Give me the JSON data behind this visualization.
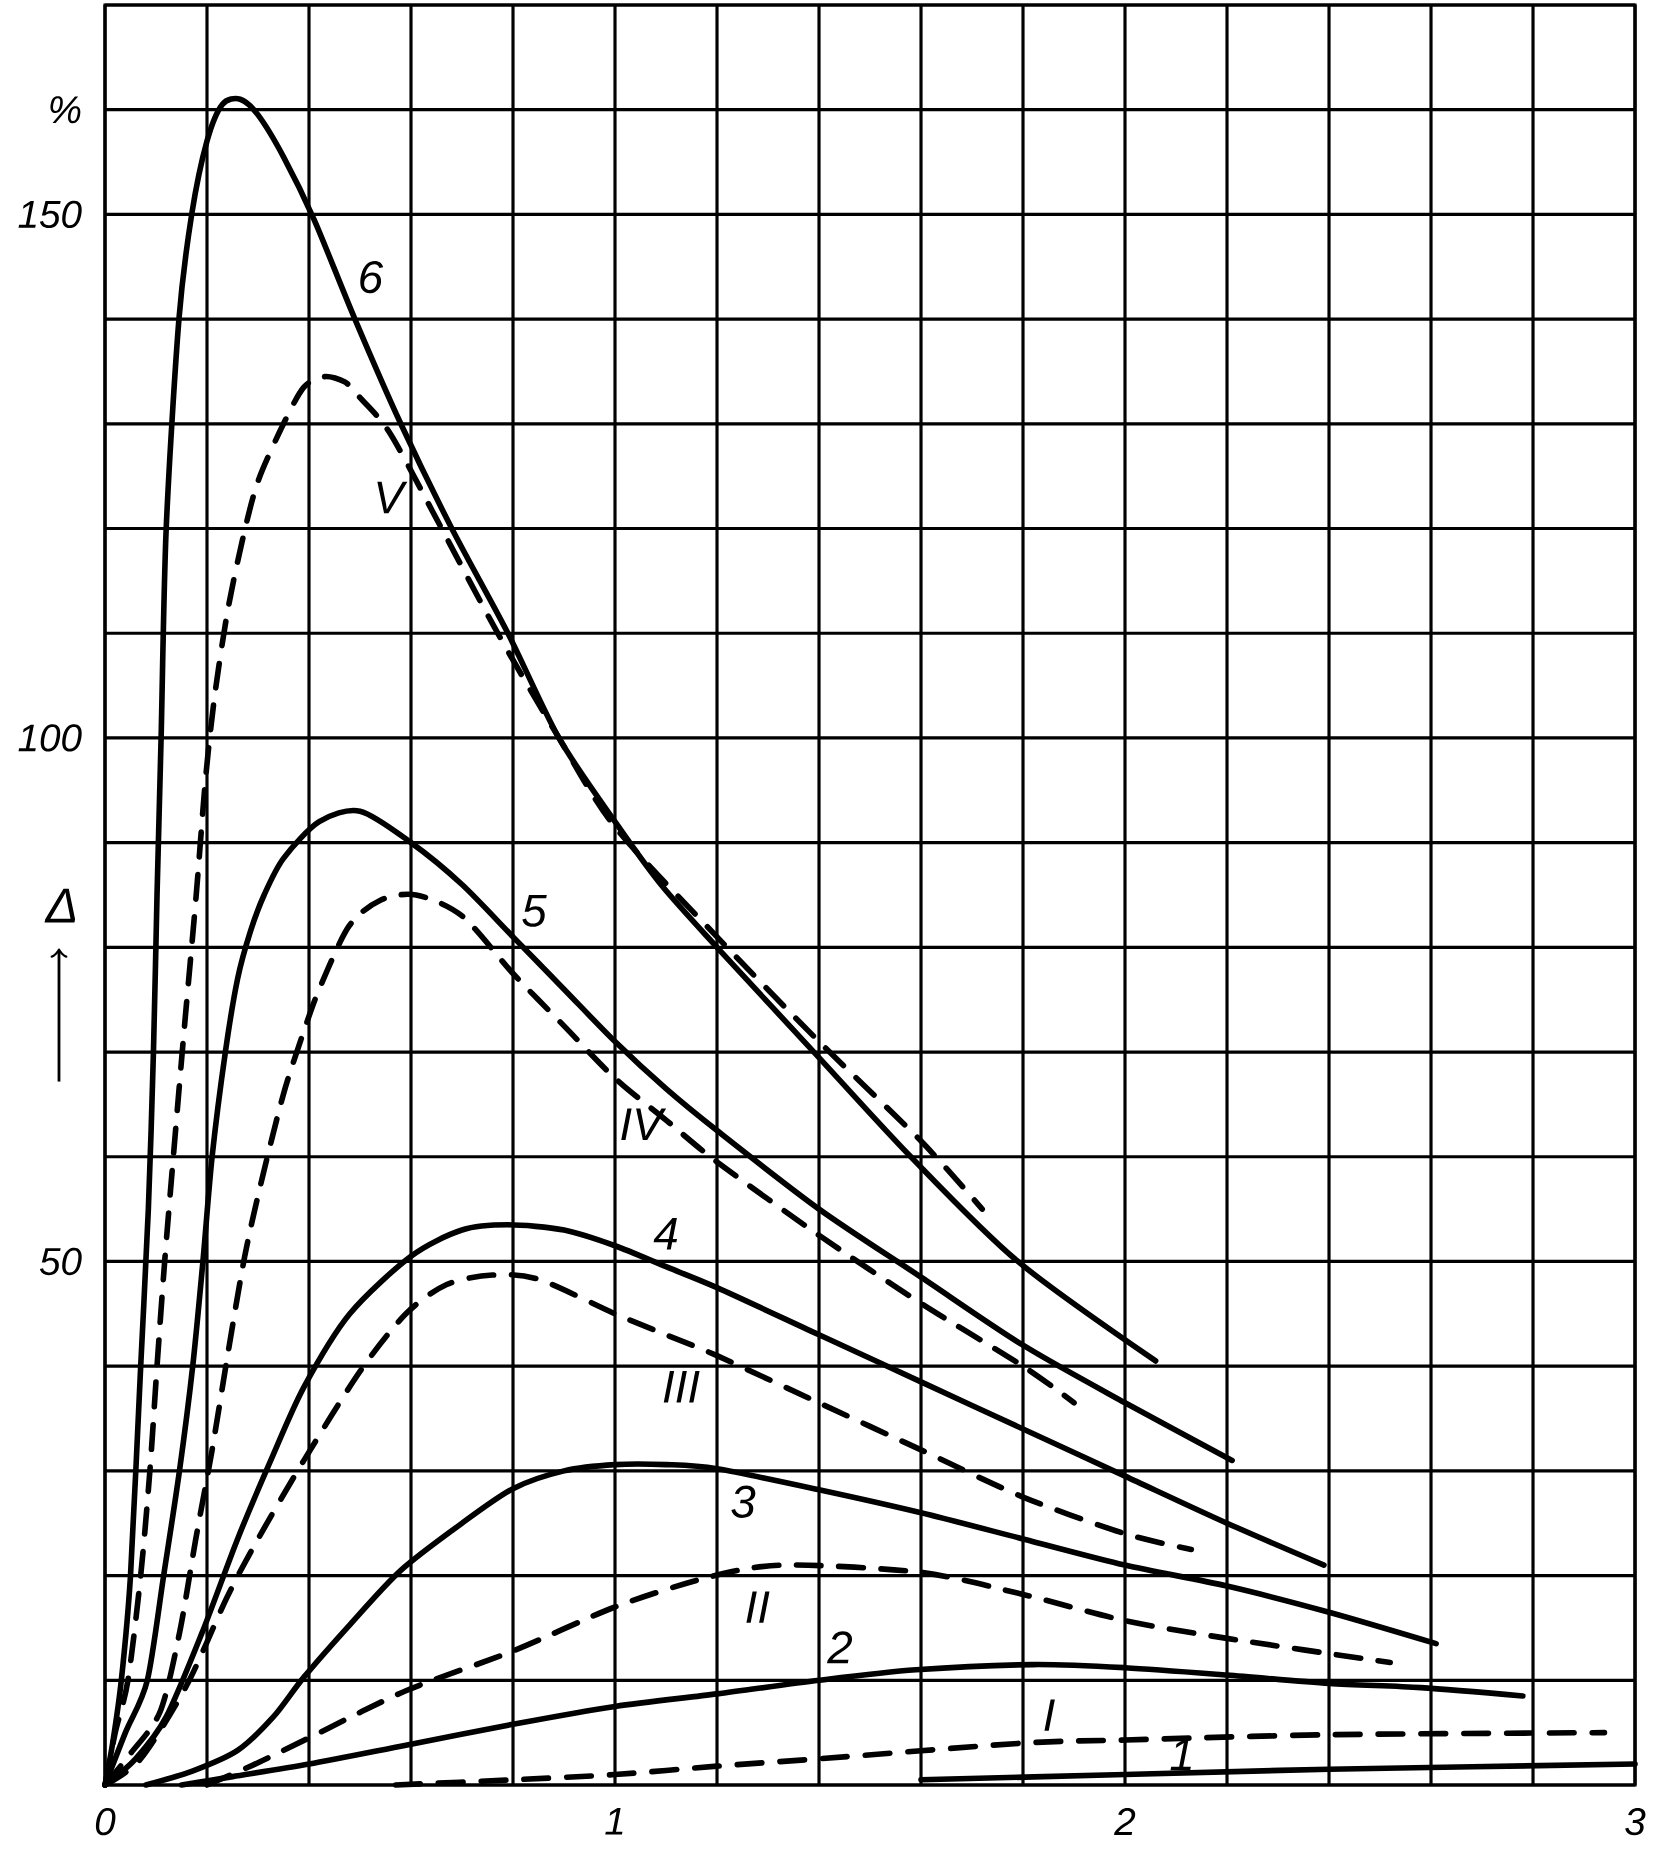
{
  "chart_data": {
    "type": "line",
    "ylabel": "Δ",
    "xlim": [
      0,
      3
    ],
    "ylim": [
      0,
      170
    ],
    "xticks": [
      0,
      {
        "value": 0.2,
        "label": null
      },
      {
        "value": 0.4,
        "label": null
      },
      {
        "value": 0.6,
        "label": null
      },
      {
        "value": 0.8,
        "label": null
      },
      1,
      {
        "value": 1.2,
        "label": null
      },
      {
        "value": 1.4,
        "label": null
      },
      {
        "value": 1.6,
        "label": null
      },
      {
        "value": 1.8,
        "label": null
      },
      2,
      {
        "value": 2.2,
        "label": null
      },
      {
        "value": 2.4,
        "label": null
      },
      {
        "value": 2.6,
        "label": null
      },
      {
        "value": 2.8,
        "label": null
      },
      3
    ],
    "yticks": [
      {
        "value": 0,
        "label": null
      },
      {
        "value": 10,
        "label": null
      },
      {
        "value": 20,
        "label": null
      },
      {
        "value": 30,
        "label": null
      },
      {
        "value": 40,
        "label": null
      },
      50,
      {
        "value": 60,
        "label": null
      },
      {
        "value": 70,
        "label": null
      },
      {
        "value": 80,
        "label": null
      },
      {
        "value": 90,
        "label": null
      },
      100,
      {
        "value": 110,
        "label": null
      },
      {
        "value": 120,
        "label": null
      },
      {
        "value": 130,
        "label": null
      },
      {
        "value": 140,
        "label": null
      },
      150,
      {
        "value": 160,
        "label": "%"
      },
      {
        "value": 170,
        "label": null
      }
    ],
    "grid": true,
    "series": [
      {
        "name": "6",
        "color": "#000000",
        "line_style": "solid",
        "x": [
          0,
          0.015,
          0.032,
          0.05,
          0.07,
          0.085,
          0.095,
          0.102,
          0.11,
          0.12,
          0.145,
          0.17,
          0.2,
          0.23,
          0.265,
          0.3,
          0.35,
          0.41,
          0.49,
          0.58,
          0.68,
          0.79,
          0.89,
          1.0,
          1.09,
          1.2,
          1.39,
          1.58,
          1.79,
          2.06
        ],
        "values": [
          0,
          4,
          10,
          20,
          40,
          55,
          70,
          85,
          100,
          120,
          140,
          150,
          157,
          160.5,
          161,
          159.5,
          155.5,
          149.5,
          140,
          130,
          120,
          110,
          100,
          92,
          86,
          80,
          70,
          60,
          50,
          40.5
        ]
      },
      {
        "name": "V",
        "color": "#000000",
        "line_style": "dashed",
        "x": [
          0,
          0.02,
          0.045,
          0.07,
          0.088,
          0.102,
          0.117,
          0.134,
          0.155,
          0.178,
          0.197,
          0.215,
          0.24,
          0.27,
          0.3,
          0.35,
          0.39,
          0.43,
          0.47,
          0.5,
          0.56,
          0.66,
          0.77,
          0.89,
          1.0,
          1.2,
          1.4,
          1.6,
          1.72
        ],
        "values": [
          0,
          5,
          10,
          20,
          30,
          40,
          50,
          60,
          72,
          84.5,
          96,
          104,
          112,
          119,
          124.5,
          130,
          133.5,
          134.5,
          134,
          132.5,
          129,
          120,
          110,
          100,
          91.5,
          81,
          71,
          61.5,
          55
        ]
      },
      {
        "name": "5",
        "color": "#000000",
        "line_style": "solid",
        "x": [
          0,
          0.04,
          0.083,
          0.115,
          0.146,
          0.172,
          0.192,
          0.21,
          0.236,
          0.26,
          0.285,
          0.312,
          0.35,
          0.42,
          0.5,
          0.6,
          0.7,
          0.8,
          0.9,
          1.0,
          1.1,
          1.2,
          1.4,
          1.6,
          1.8,
          2.0,
          2.21
        ],
        "values": [
          0,
          5,
          10,
          20,
          30,
          40,
          50,
          60,
          70,
          77,
          81.5,
          85,
          88.5,
          92,
          93,
          90,
          86,
          81,
          76,
          71,
          66.5,
          62.5,
          55,
          48.5,
          42,
          36.5,
          31
        ]
      },
      {
        "name": "IV",
        "color": "#000000",
        "line_style": "dashed",
        "x": [
          0,
          0.05,
          0.108,
          0.146,
          0.178,
          0.21,
          0.242,
          0.274,
          0.306,
          0.35,
          0.39,
          0.42,
          0.478,
          0.54,
          0.61,
          0.7,
          0.8,
          0.9,
          1.0,
          1.1,
          1.2,
          1.4,
          1.6,
          1.8,
          1.9
        ],
        "values": [
          0,
          3,
          7,
          14.5,
          23.5,
          32,
          41.5,
          50.5,
          57.5,
          66,
          72,
          76,
          82,
          84.5,
          85,
          83,
          77.5,
          72.5,
          67.5,
          63.5,
          59.5,
          52.5,
          46,
          40,
          36.5
        ]
      },
      {
        "name": "4",
        "color": "#000000",
        "line_style": "solid",
        "x": [
          0,
          0.06,
          0.12,
          0.19,
          0.26,
          0.325,
          0.39,
          0.48,
          0.6,
          0.7,
          0.79,
          0.9,
          1.0,
          1.1,
          1.2,
          1.4,
          1.6,
          1.8,
          2.0,
          2.2,
          2.39
        ],
        "values": [
          0,
          2.5,
          6.5,
          14.5,
          23.5,
          31,
          38,
          45,
          50.5,
          53,
          53.5,
          53,
          51.5,
          49.5,
          47.5,
          43,
          38.5,
          34,
          29.5,
          25,
          21
        ]
      },
      {
        "name": "III",
        "color": "#000000",
        "line_style": "dashed",
        "x": [
          0,
          0.07,
          0.16,
          0.24,
          0.3,
          0.39,
          0.5,
          0.59,
          0.67,
          0.76,
          0.85,
          1.0,
          1.1,
          1.2,
          1.4,
          1.6,
          1.8,
          2.0,
          2.13
        ],
        "values": [
          0,
          2.5,
          9.5,
          18,
          23.5,
          31,
          39.5,
          45,
          47.8,
          48.7,
          48.3,
          45,
          43,
          41,
          36.5,
          32,
          27.5,
          24,
          22.5
        ]
      },
      {
        "name": "3",
        "color": "#000000",
        "line_style": "solid",
        "x": [
          0.08,
          0.17,
          0.26,
          0.33,
          0.39,
          0.48,
          0.58,
          0.7,
          0.8,
          0.9,
          1.0,
          1.1,
          1.2,
          1.4,
          1.6,
          1.8,
          2.0,
          2.2,
          2.4,
          2.61
        ],
        "values": [
          0,
          1.3,
          3.3,
          6.5,
          10.3,
          15.3,
          20.5,
          25,
          28.3,
          30,
          30.6,
          30.6,
          30.2,
          28.2,
          26,
          23.5,
          21,
          19,
          16.5,
          13.5
        ]
      },
      {
        "name": "II",
        "color": "#000000",
        "line_style": "dashed",
        "x": [
          0.2,
          0.29,
          0.4,
          0.59,
          0.8,
          1.0,
          1.18,
          1.33,
          1.6,
          1.8,
          2.0,
          2.2,
          2.52
        ],
        "values": [
          0,
          1.9,
          4.5,
          9,
          12.8,
          17,
          19.8,
          21,
          20.3,
          18.2,
          15.7,
          14,
          11.7
        ]
      },
      {
        "name": "2",
        "color": "#000000",
        "line_style": "solid",
        "x": [
          0.15,
          0.25,
          0.4,
          0.59,
          0.8,
          1.0,
          1.2,
          1.4,
          1.59,
          1.82,
          2.0,
          2.2,
          2.4,
          2.58,
          2.78
        ],
        "values": [
          0,
          0.8,
          2,
          3.8,
          5.8,
          7.5,
          8.7,
          10,
          11,
          11.5,
          11.2,
          10.5,
          9.7,
          9.3,
          8.5
        ]
      },
      {
        "name": "I",
        "color": "#000000",
        "line_style": "dashed",
        "x": [
          0.57,
          0.8,
          1.0,
          1.2,
          1.4,
          1.8,
          2.0,
          2.4,
          2.94
        ],
        "values": [
          0,
          0.5,
          1,
          1.8,
          2.5,
          4,
          4.3,
          4.8,
          5
        ]
      },
      {
        "name": "1",
        "color": "#000000",
        "line_style": "solid",
        "x": [
          1.6,
          2.0,
          2.4,
          3.0
        ],
        "values": [
          0.5,
          1,
          1.5,
          2
        ]
      }
    ]
  }
}
